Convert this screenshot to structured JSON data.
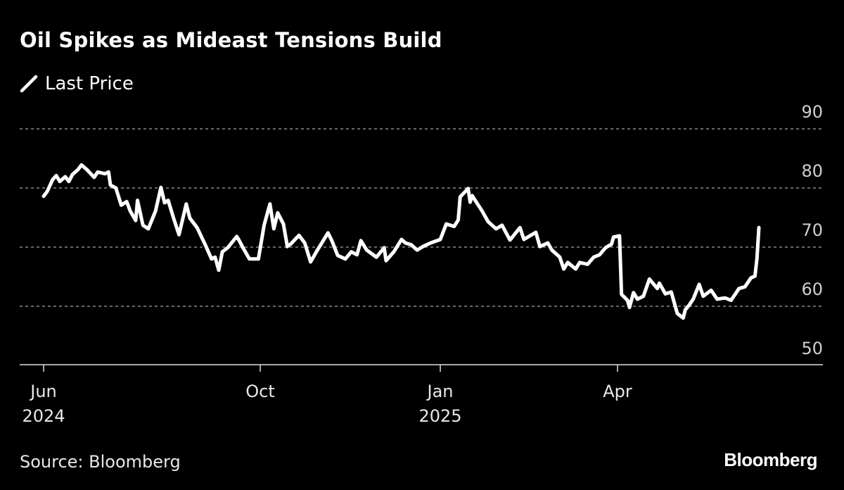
{
  "title": "Oil Spikes as Mideast Tensions Build",
  "source": "Source: Bloomberg",
  "logo": "Bloomberg",
  "chart_data": {
    "type": "line",
    "title": "Oil Spikes as Mideast Tensions Build",
    "legend": {
      "position": "top-left",
      "entries": [
        "Last Price"
      ]
    },
    "colors": {
      "background": "#000000",
      "line": "#ffffff",
      "grid": "#8a8a8a"
    },
    "grid": true,
    "ylim": [
      50,
      90
    ],
    "yaxis_side": "right",
    "yticks": [
      90,
      80,
      70,
      60,
      50
    ],
    "xticks": [
      {
        "date": "2024-06-03",
        "label": "Jun",
        "sub": "2024"
      },
      {
        "date": "2024-10-01",
        "label": "Oct",
        "sub": ""
      },
      {
        "date": "2025-01-02",
        "label": "Jan",
        "sub": "2025"
      },
      {
        "date": "2025-04-01",
        "label": "Apr",
        "sub": ""
      }
    ],
    "series": [
      {
        "name": "Last Price",
        "points": [
          [
            "2024-06-03",
            78.6
          ],
          [
            "2024-06-05",
            79.4
          ],
          [
            "2024-06-08",
            81.4
          ],
          [
            "2024-06-10",
            82.1
          ],
          [
            "2024-06-12",
            81.1
          ],
          [
            "2024-06-15",
            81.9
          ],
          [
            "2024-06-17",
            81.1
          ],
          [
            "2024-06-19",
            82.3
          ],
          [
            "2024-06-22",
            83.1
          ],
          [
            "2024-06-24",
            83.9
          ],
          [
            "2024-06-27",
            83.1
          ],
          [
            "2024-07-01",
            81.8
          ],
          [
            "2024-07-03",
            82.7
          ],
          [
            "2024-07-07",
            82.4
          ],
          [
            "2024-07-09",
            82.7
          ],
          [
            "2024-07-10",
            80.5
          ],
          [
            "2024-07-13",
            80.0
          ],
          [
            "2024-07-16",
            77.1
          ],
          [
            "2024-07-19",
            77.7
          ],
          [
            "2024-07-21",
            76.1
          ],
          [
            "2024-07-24",
            74.5
          ],
          [
            "2024-07-25",
            77.9
          ],
          [
            "2024-07-28",
            73.7
          ],
          [
            "2024-07-31",
            73.1
          ],
          [
            "2024-08-04",
            76.1
          ],
          [
            "2024-08-07",
            80.1
          ],
          [
            "2024-08-09",
            77.5
          ],
          [
            "2024-08-11",
            77.9
          ],
          [
            "2024-08-14",
            74.9
          ],
          [
            "2024-08-17",
            72.1
          ],
          [
            "2024-08-21",
            77.3
          ],
          [
            "2024-08-23",
            74.9
          ],
          [
            "2024-08-27",
            73.3
          ],
          [
            "2024-09-01",
            70.1
          ],
          [
            "2024-09-04",
            68.0
          ],
          [
            "2024-09-06",
            68.3
          ],
          [
            "2024-09-08",
            66.1
          ],
          [
            "2024-09-10",
            69.2
          ],
          [
            "2024-09-13",
            69.9
          ],
          [
            "2024-09-18",
            71.8
          ],
          [
            "2024-09-19",
            71.3
          ],
          [
            "2024-09-22",
            69.6
          ],
          [
            "2024-09-25",
            68.0
          ],
          [
            "2024-09-30",
            68.0
          ],
          [
            "2024-10-03",
            73.7
          ],
          [
            "2024-10-06",
            77.3
          ],
          [
            "2024-10-08",
            73.1
          ],
          [
            "2024-10-10",
            75.8
          ],
          [
            "2024-10-13",
            73.9
          ],
          [
            "2024-10-15",
            70.1
          ],
          [
            "2024-10-17",
            70.6
          ],
          [
            "2024-10-21",
            72.0
          ],
          [
            "2024-10-24",
            70.7
          ],
          [
            "2024-10-27",
            67.5
          ],
          [
            "2024-10-30",
            69.2
          ],
          [
            "2024-11-05",
            72.4
          ],
          [
            "2024-11-07",
            71.1
          ],
          [
            "2024-11-10",
            68.6
          ],
          [
            "2024-11-14",
            68.0
          ],
          [
            "2024-11-17",
            69.2
          ],
          [
            "2024-11-20",
            68.7
          ],
          [
            "2024-11-22",
            71.1
          ],
          [
            "2024-11-25",
            69.5
          ],
          [
            "2024-11-30",
            68.3
          ],
          [
            "2024-12-04",
            69.9
          ],
          [
            "2024-12-05",
            67.7
          ],
          [
            "2024-12-09",
            69.2
          ],
          [
            "2024-12-13",
            71.3
          ],
          [
            "2024-12-15",
            70.7
          ],
          [
            "2024-12-18",
            70.4
          ],
          [
            "2024-12-21",
            69.5
          ],
          [
            "2024-12-24",
            70.1
          ],
          [
            "2024-12-28",
            70.7
          ],
          [
            "2025-01-02",
            71.3
          ],
          [
            "2025-01-05",
            73.9
          ],
          [
            "2025-01-09",
            73.5
          ],
          [
            "2025-01-11",
            74.6
          ],
          [
            "2025-01-12",
            78.5
          ],
          [
            "2025-01-16",
            79.9
          ],
          [
            "2025-01-17",
            77.6
          ],
          [
            "2025-01-18",
            78.7
          ],
          [
            "2025-01-23",
            76.1
          ],
          [
            "2025-01-26",
            74.3
          ],
          [
            "2025-01-30",
            73.1
          ],
          [
            "2025-02-02",
            73.7
          ],
          [
            "2025-02-06",
            71.2
          ],
          [
            "2025-02-11",
            73.3
          ],
          [
            "2025-02-13",
            71.3
          ],
          [
            "2025-02-16",
            71.9
          ],
          [
            "2025-02-19",
            72.5
          ],
          [
            "2025-02-21",
            70.1
          ],
          [
            "2025-02-25",
            70.7
          ],
          [
            "2025-02-27",
            69.5
          ],
          [
            "2025-03-03",
            68.3
          ],
          [
            "2025-03-05",
            66.3
          ],
          [
            "2025-03-07",
            67.4
          ],
          [
            "2025-03-11",
            66.3
          ],
          [
            "2025-03-13",
            67.4
          ],
          [
            "2025-03-17",
            67.1
          ],
          [
            "2025-03-20",
            68.3
          ],
          [
            "2025-03-23",
            68.7
          ],
          [
            "2025-03-26",
            69.9
          ],
          [
            "2025-03-29",
            70.5
          ],
          [
            "2025-03-30",
            71.7
          ],
          [
            "2025-04-02",
            71.9
          ],
          [
            "2025-04-03",
            62.0
          ],
          [
            "2025-04-06",
            61.0
          ],
          [
            "2025-04-07",
            59.8
          ],
          [
            "2025-04-09",
            62.3
          ],
          [
            "2025-04-11",
            61.2
          ],
          [
            "2025-04-14",
            61.7
          ],
          [
            "2025-04-17",
            64.6
          ],
          [
            "2025-04-21",
            63.0
          ],
          [
            "2025-04-22",
            63.9
          ],
          [
            "2025-04-25",
            62.1
          ],
          [
            "2025-04-28",
            62.4
          ],
          [
            "2025-05-01",
            58.8
          ],
          [
            "2025-05-04",
            58.0
          ],
          [
            "2025-05-05",
            59.4
          ],
          [
            "2025-05-07",
            60.2
          ],
          [
            "2025-05-09",
            61.2
          ],
          [
            "2025-05-12",
            63.7
          ],
          [
            "2025-05-14",
            61.7
          ],
          [
            "2025-05-18",
            62.7
          ],
          [
            "2025-05-21",
            61.2
          ],
          [
            "2025-05-25",
            61.4
          ],
          [
            "2025-05-28",
            61.0
          ],
          [
            "2025-06-01",
            63.0
          ],
          [
            "2025-06-04",
            63.3
          ],
          [
            "2025-06-07",
            64.8
          ],
          [
            "2025-06-09",
            65.1
          ],
          [
            "2025-06-10",
            68.0
          ],
          [
            "2025-06-11",
            73.3
          ]
        ]
      }
    ]
  }
}
